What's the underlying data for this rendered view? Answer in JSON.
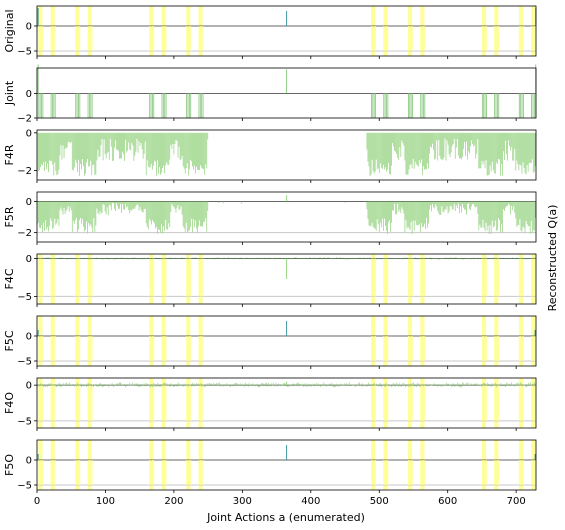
{
  "chart_data": {
    "type": "bar",
    "xlabel": "Joint Actions a (enumerated)",
    "ylabel": "Reconstructed Q(a)",
    "x_range": [
      0,
      729
    ],
    "x_ticks": [
      0,
      100,
      200,
      300,
      400,
      500,
      600,
      700
    ],
    "highlight_color": "#ffff99",
    "grid_line_color": "#c8c8c8",
    "panels": [
      {
        "label": "Original",
        "ylim": [
          -6,
          4
        ],
        "y_ticks": [
          0,
          -5
        ],
        "hline": 0,
        "ref_line": -5,
        "color": "#2f8f9d",
        "highlight_color": "#ffff99",
        "pattern": "original",
        "negative_value": -5,
        "spike_value": 3
      },
      {
        "label": "Joint",
        "ylim": [
          -2,
          2.1
        ],
        "y_ticks": [
          0,
          -2
        ],
        "hline": 0,
        "ref_line": null,
        "color": "#84c77a",
        "highlight_color": null,
        "pattern": "joint",
        "negative_value": -2,
        "spike_value": 2
      },
      {
        "label": "F4R",
        "ylim": [
          -2.5,
          0.15
        ],
        "y_ticks": [
          0,
          -2
        ],
        "hline": null,
        "ref_line": null,
        "color": "#8fd07a",
        "highlight_color": null,
        "pattern": "f4r",
        "negative_value": -2.3,
        "spike_value": 0
      },
      {
        "label": "F5R",
        "ylim": [
          -2.6,
          0.6
        ],
        "y_ticks": [
          0,
          -2
        ],
        "hline": 0,
        "ref_line": -2,
        "color": "#8fd07a",
        "highlight_color": null,
        "pattern": "f5r",
        "negative_value": -2.1,
        "spike_value": 0.4
      },
      {
        "label": "F4C",
        "ylim": [
          -6,
          0.6
        ],
        "y_ticks": [
          0,
          -5
        ],
        "hline": 0,
        "ref_line": -5,
        "color": "#8fd07a",
        "highlight_color": "#ffff99",
        "pattern": "f4c",
        "negative_value": -5,
        "spike_value": -2.7
      },
      {
        "label": "F5C",
        "ylim": [
          -6,
          4
        ],
        "y_ticks": [
          0,
          -5
        ],
        "hline": 0,
        "ref_line": -5,
        "color": "#2f8f9d",
        "highlight_color": "#ffff99",
        "pattern": "f5c",
        "negative_value": -5,
        "spike_value": 3
      },
      {
        "label": "F4O",
        "ylim": [
          -6,
          1
        ],
        "y_ticks": [
          0,
          -5
        ],
        "hline": 0,
        "ref_line": -5,
        "color": "#8fd07a",
        "highlight_color": "#ffff99",
        "pattern": "f4o",
        "negative_value": -5,
        "spike_value": 0.5
      },
      {
        "label": "F5O",
        "ylim": [
          -6,
          4
        ],
        "y_ticks": [
          0,
          -5
        ],
        "hline": 0,
        "ref_line": -5,
        "color": "#2f8f9d",
        "highlight_color": "#ffff99",
        "pattern": "f5c",
        "negative_value": -5,
        "spike_value": 3
      }
    ],
    "neg_groups_x": [
      [
        2,
        8
      ],
      [
        20,
        26
      ],
      [
        56,
        62
      ],
      [
        74,
        80
      ],
      [
        164,
        170
      ],
      [
        182,
        188
      ],
      [
        218,
        224
      ],
      [
        236,
        242
      ],
      [
        488,
        494
      ],
      [
        506,
        512
      ],
      [
        542,
        548
      ],
      [
        560,
        566
      ],
      [
        650,
        656
      ],
      [
        668,
        674
      ],
      [
        704,
        710
      ],
      [
        722,
        728
      ]
    ],
    "spike_x": 364
  }
}
